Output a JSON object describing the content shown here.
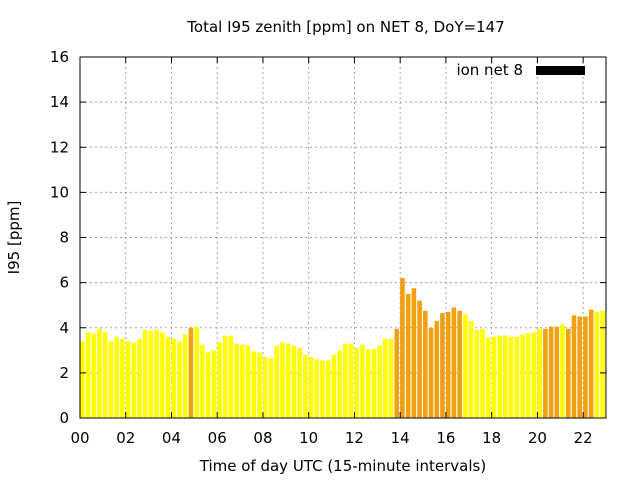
{
  "chart_data": {
    "type": "bar",
    "title": "Total I95 zenith [ppm] on NET 8, DoY=147",
    "xlabel": "Time of day UTC (15-minute intervals)",
    "ylabel": "I95 [ppm]",
    "xlim": [
      0,
      23
    ],
    "ylim": [
      0,
      16
    ],
    "xticks": [
      "00",
      "02",
      "04",
      "06",
      "08",
      "10",
      "12",
      "14",
      "16",
      "18",
      "20",
      "22"
    ],
    "yticks": [
      "0",
      "2",
      "4",
      "6",
      "8",
      "10",
      "12",
      "14",
      "16"
    ],
    "grid": true,
    "legend": {
      "position": "top-right",
      "label": "ion net 8",
      "color": "#000000"
    },
    "bar_interval_hours": 0.25,
    "colors": {
      "yellow": "#ffff00",
      "orange": "#f0a010",
      "light_orange": "#ffc000"
    },
    "series": [
      {
        "start_hour": 0,
        "values": [
          3.4,
          3.8,
          3.75,
          3.95,
          3.8,
          3.4,
          3.6,
          3.5,
          3.4,
          3.35,
          3.5,
          3.9,
          3.85,
          3.9,
          3.8,
          3.6,
          3.5,
          3.4,
          3.7,
          4.0,
          4.05,
          3.25,
          2.9,
          3.0,
          3.35,
          3.65,
          3.65,
          3.3,
          3.25,
          3.2,
          2.95,
          2.9,
          2.7,
          2.65,
          3.2,
          3.35,
          3.3,
          3.2,
          3.1,
          2.8,
          2.7,
          2.6,
          2.55,
          2.55,
          2.8,
          3.0,
          3.3,
          3.3,
          3.1,
          3.25,
          3.05,
          3.05,
          3.2,
          3.5,
          3.5,
          3.95,
          6.2,
          5.5,
          5.75,
          5.2,
          4.75,
          4.0,
          4.3,
          4.65,
          4.7,
          4.9,
          4.75,
          4.6,
          4.3,
          3.9,
          3.95,
          3.55,
          3.6,
          3.65,
          3.65,
          3.6,
          3.6,
          3.7,
          3.75,
          3.8,
          3.95,
          3.95,
          4.05,
          4.05,
          4.15,
          3.95,
          4.55,
          4.5,
          4.5,
          4.8,
          4.7,
          4.75
        ],
        "color_codes": "YYYYYYYYYYYYYYYYYYYOYYYYYYYYYYYYYYYYYYYYYYYYYYYYYYYYYYYOOOOOOOOOOOOYYYYYYYYYYYYYYOOOYOOOOO"
      }
    ]
  }
}
